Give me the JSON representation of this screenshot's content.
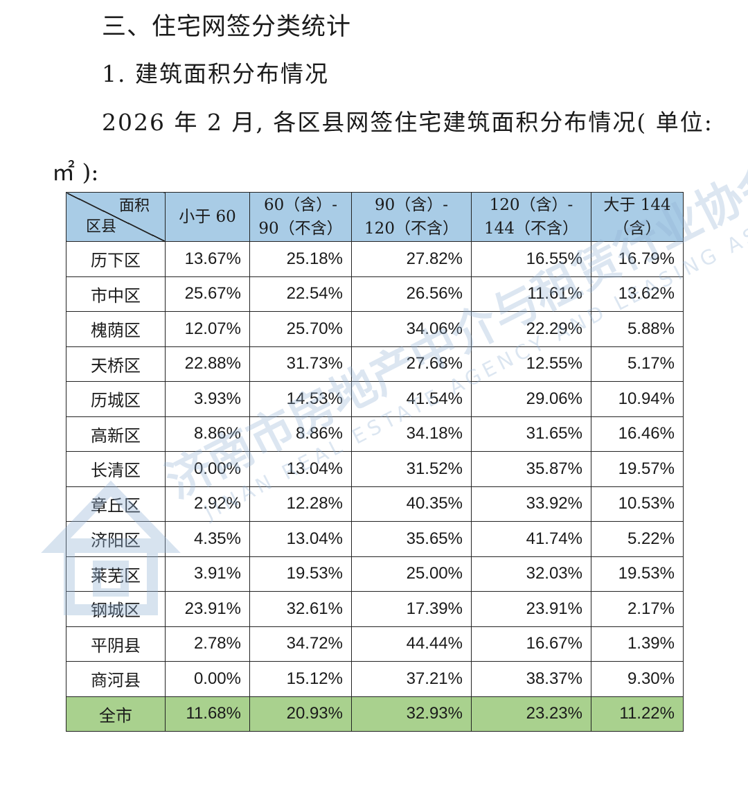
{
  "headings": {
    "section": "三、住宅网签分类统计",
    "subsection": "1. 建筑面积分布情况",
    "intro_line1": "2026 年 2 月, 各区县网签住宅建筑面积分布情况( 单位:",
    "intro_line2": "㎡ ):"
  },
  "table": {
    "corner_top": "面积",
    "corner_bottom": "区县",
    "columns": [
      {
        "line1": "小于 60",
        "line2": ""
      },
      {
        "line1": "60（含）-",
        "line2": "90（不含）"
      },
      {
        "line1": "90（含）-",
        "line2": "120（不含）"
      },
      {
        "line1": "120（含）-",
        "line2": "144（不含）"
      },
      {
        "line1": "大于 144",
        "line2": "（含）"
      }
    ],
    "rows": [
      {
        "district": "历下区",
        "values": [
          "13.67%",
          "25.18%",
          "27.82%",
          "16.55%",
          "16.79%"
        ]
      },
      {
        "district": "市中区",
        "values": [
          "25.67%",
          "22.54%",
          "26.56%",
          "11.61%",
          "13.62%"
        ]
      },
      {
        "district": "槐荫区",
        "values": [
          "12.07%",
          "25.70%",
          "34.06%",
          "22.29%",
          "5.88%"
        ]
      },
      {
        "district": "天桥区",
        "values": [
          "22.88%",
          "31.73%",
          "27.68%",
          "12.55%",
          "5.17%"
        ]
      },
      {
        "district": "历城区",
        "values": [
          "3.93%",
          "14.53%",
          "41.54%",
          "29.06%",
          "10.94%"
        ]
      },
      {
        "district": "高新区",
        "values": [
          "8.86%",
          "8.86%",
          "34.18%",
          "31.65%",
          "16.46%"
        ]
      },
      {
        "district": "长清区",
        "values": [
          "0.00%",
          "13.04%",
          "31.52%",
          "35.87%",
          "19.57%"
        ]
      },
      {
        "district": "章丘区",
        "values": [
          "2.92%",
          "12.28%",
          "40.35%",
          "33.92%",
          "10.53%"
        ]
      },
      {
        "district": "济阳区",
        "values": [
          "4.35%",
          "13.04%",
          "35.65%",
          "41.74%",
          "5.22%"
        ]
      },
      {
        "district": "莱芜区",
        "values": [
          "3.91%",
          "19.53%",
          "25.00%",
          "32.03%",
          "19.53%"
        ]
      },
      {
        "district": "钢城区",
        "values": [
          "23.91%",
          "32.61%",
          "17.39%",
          "23.91%",
          "2.17%"
        ]
      },
      {
        "district": "平阴县",
        "values": [
          "2.78%",
          "34.72%",
          "44.44%",
          "16.67%",
          "1.39%"
        ]
      },
      {
        "district": "商河县",
        "values": [
          "0.00%",
          "15.12%",
          "37.21%",
          "38.37%",
          "9.30%"
        ]
      }
    ],
    "total": {
      "district": "全市",
      "values": [
        "11.68%",
        "20.93%",
        "32.93%",
        "23.23%",
        "11.22%"
      ]
    }
  },
  "watermark": {
    "cn": "济南市房地产中介与租赁行业协会",
    "en": "JINAN REAL ESTATE AGENCY AND LEASING ASSOCIATION",
    "color": "#8fb0d3"
  },
  "colors": {
    "header_bg": "#a9cce6",
    "total_bg": "#a9d18e"
  }
}
